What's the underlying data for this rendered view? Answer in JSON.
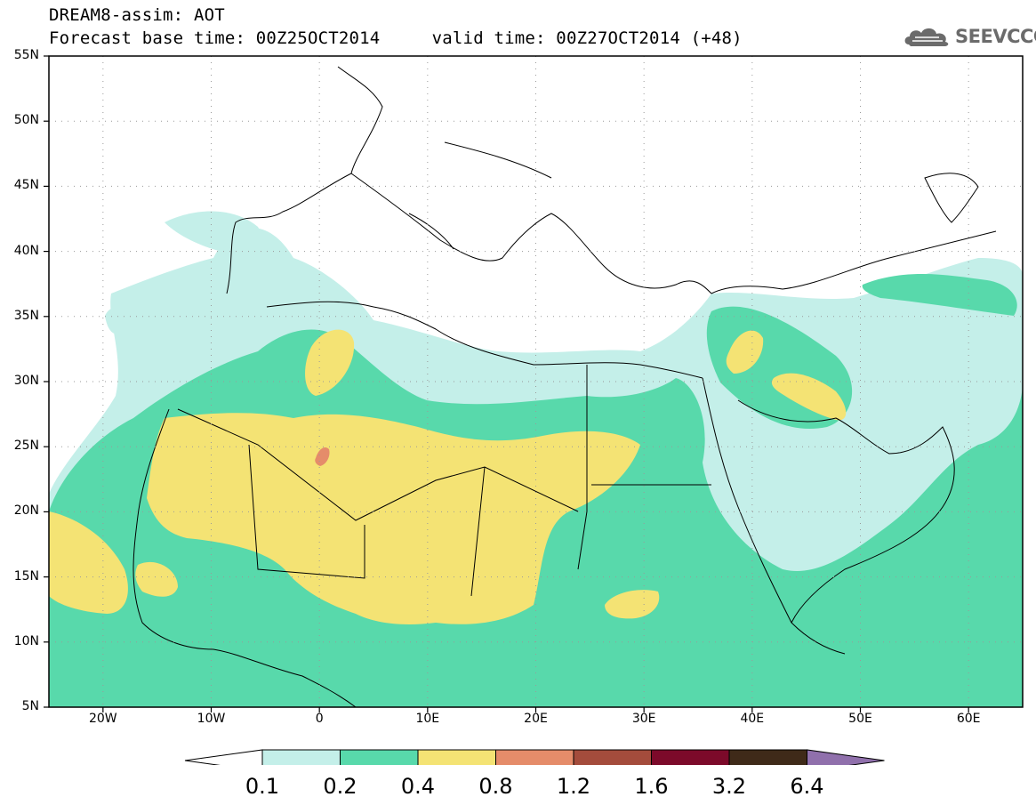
{
  "header": {
    "line1": "DREAM8-assim: AOT",
    "line2": "Forecast base time: 00Z25OCT2014     valid time: 00Z27OCT2014 (+48)"
  },
  "logo": {
    "icon": "cloud-icon",
    "text": "SEEVCCC"
  },
  "map": {
    "lat_labels": [
      "55N",
      "50N",
      "45N",
      "40N",
      "35N",
      "30N",
      "25N",
      "20N",
      "15N",
      "10N",
      "5N"
    ],
    "lon_labels": [
      "20W",
      "10W",
      "0",
      "10E",
      "20E",
      "30E",
      "40E",
      "50E",
      "60E"
    ],
    "lat_range": [
      5,
      55
    ],
    "lon_range": [
      -25,
      65
    ],
    "grid": "dotted"
  },
  "colorbar": {
    "labels": [
      "0.1",
      "0.2",
      "0.4",
      "0.8",
      "1.2",
      "1.6",
      "3.2",
      "6.4"
    ],
    "colors": [
      "#ffffff",
      "#c4efe9",
      "#58d9ab",
      "#f4e374",
      "#e58c6a",
      "#a44c3c",
      "#7c0a2a",
      "#3f2a19",
      "#9070ac"
    ]
  }
}
